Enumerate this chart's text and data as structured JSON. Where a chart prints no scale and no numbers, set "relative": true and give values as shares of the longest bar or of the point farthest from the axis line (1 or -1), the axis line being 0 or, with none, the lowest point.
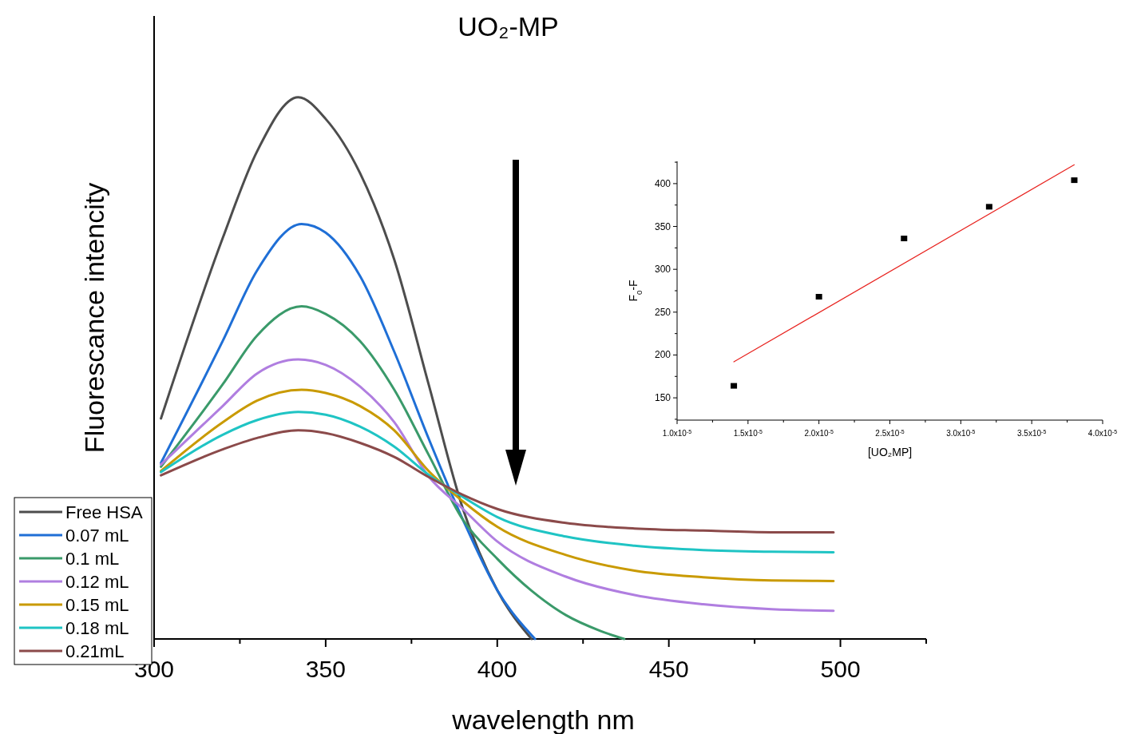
{
  "chart_data": [
    {
      "type": "line",
      "title": "UO₂-MP",
      "xlabel": "wavelength nm",
      "ylabel": "Fluorescance intencity",
      "relative": true,
      "xlim": [
        300,
        525
      ],
      "xticks": [
        300,
        {
          "value": 325,
          "label": null
        },
        350,
        {
          "value": 375,
          "label": null
        },
        400,
        {
          "value": 425,
          "label": null
        },
        450,
        {
          "value": 475,
          "label": null
        },
        500,
        {
          "value": 525,
          "label": null
        }
      ],
      "legend": "bottom left",
      "series": [
        {
          "name": "Free HSA",
          "color": "#4d4d4d",
          "x": [
            302,
            320,
            330,
            342,
            350,
            360,
            370,
            380,
            390,
            400,
            410
          ],
          "values": [
            0.407,
            0.74,
            0.9,
            1.0,
            0.96,
            0.86,
            0.7,
            0.47,
            0.24,
            0.09,
            0
          ]
        },
        {
          "name": "0.07 mL",
          "color": "#1f6fd6",
          "x": [
            302,
            320,
            330,
            343,
            350,
            360,
            370,
            380,
            390,
            400,
            411
          ],
          "values": [
            0.325,
            0.55,
            0.68,
            0.766,
            0.75,
            0.67,
            0.53,
            0.37,
            0.22,
            0.09,
            0
          ]
        },
        {
          "name": "0.1 mL",
          "color": "#3a9a6a",
          "x": [
            302,
            320,
            330,
            343,
            350,
            360,
            370,
            380,
            390,
            400,
            410,
            420,
            430,
            437
          ],
          "values": [
            0.318,
            0.47,
            0.56,
            0.614,
            0.6,
            0.55,
            0.46,
            0.34,
            0.22,
            0.148,
            0.089,
            0.044,
            0.015,
            0
          ]
        },
        {
          "name": "0.12 mL",
          "color": "#b07ee0",
          "x": [
            302,
            320,
            330,
            342,
            350,
            360,
            370,
            380,
            390,
            400,
            420,
            440,
            460,
            480,
            498
          ],
          "values": [
            0.322,
            0.43,
            0.49,
            0.516,
            0.506,
            0.466,
            0.4,
            0.3,
            0.24,
            0.18,
            0.115,
            0.081,
            0.064,
            0.055,
            0.052
          ]
        },
        {
          "name": "0.15 mL",
          "color": "#c99a00",
          "x": [
            302,
            320,
            330,
            343,
            350,
            360,
            370,
            380,
            390,
            400,
            420,
            440,
            460,
            480,
            498
          ],
          "values": [
            0.31,
            0.4,
            0.44,
            0.46,
            0.454,
            0.43,
            0.385,
            0.31,
            0.254,
            0.207,
            0.155,
            0.126,
            0.114,
            0.108,
            0.107
          ]
        },
        {
          "name": "0.18 mL",
          "color": "#1fc4c4",
          "x": [
            302,
            320,
            330,
            342,
            350,
            360,
            370,
            380,
            390,
            400,
            420,
            440,
            460,
            480,
            498
          ],
          "values": [
            0.308,
            0.377,
            0.404,
            0.419,
            0.414,
            0.392,
            0.355,
            0.303,
            0.262,
            0.225,
            0.189,
            0.172,
            0.164,
            0.161,
            0.16
          ]
        },
        {
          "name": "0.21mL",
          "color": "#8b4a4a",
          "x": [
            302,
            320,
            330,
            342,
            350,
            360,
            370,
            380,
            390,
            400,
            420,
            440,
            460,
            480,
            498
          ],
          "values": [
            0.302,
            0.35,
            0.371,
            0.385,
            0.38,
            0.362,
            0.336,
            0.299,
            0.266,
            0.24,
            0.214,
            0.204,
            0.2,
            0.197,
            0.197
          ]
        }
      ]
    },
    {
      "type": "scatter",
      "xlabel": "[UO₂MP]",
      "ylabel": "F$_{0}$-F",
      "xlim": [
        1e-05,
        4e-05
      ],
      "ylim": [
        124,
        426
      ],
      "xticks": [
        {
          "value": 1e-05,
          "label": "1.0x10$^{-5}$"
        },
        {
          "value": 1.25e-05,
          "label": null
        },
        {
          "value": 1.5e-05,
          "label": "1.5x10$^{-5}$"
        },
        {
          "value": 1.75e-05,
          "label": null
        },
        {
          "value": 2e-05,
          "label": "2.0x10$^{-5}$"
        },
        {
          "value": 2.25e-05,
          "label": null
        },
        {
          "value": 2.5e-05,
          "label": "2.5x10$^{-5}$"
        },
        {
          "value": 2.75e-05,
          "label": null
        },
        {
          "value": 3e-05,
          "label": "3.0x10$^{-5}$"
        },
        {
          "value": 3.25e-05,
          "label": null
        },
        {
          "value": 3.5e-05,
          "label": "3.5x10$^{-5}$"
        },
        {
          "value": 3.75e-05,
          "label": null
        },
        {
          "value": 4e-05,
          "label": "4.0x10$^{-5}$"
        }
      ],
      "yticks": [
        {
          "value": 125,
          "label": null
        },
        150,
        {
          "value": 175,
          "label": null
        },
        200,
        {
          "value": 225,
          "label": null
        },
        250,
        {
          "value": 275,
          "label": null
        },
        300,
        {
          "value": 325,
          "label": null
        },
        350,
        {
          "value": 375,
          "label": null
        },
        400,
        {
          "value": 425,
          "label": null
        }
      ],
      "series": [
        {
          "marker": "square",
          "color": "#000000",
          "x": [
            1.4e-05,
            2e-05,
            2.6e-05,
            3.2e-05,
            3.8e-05
          ],
          "values": [
            164,
            268,
            336,
            373,
            404
          ]
        },
        {
          "type": "line",
          "color": "#e8231f",
          "x": [
            1.4e-05,
            3.8e-05
          ],
          "values": [
            192,
            422
          ]
        }
      ]
    }
  ]
}
